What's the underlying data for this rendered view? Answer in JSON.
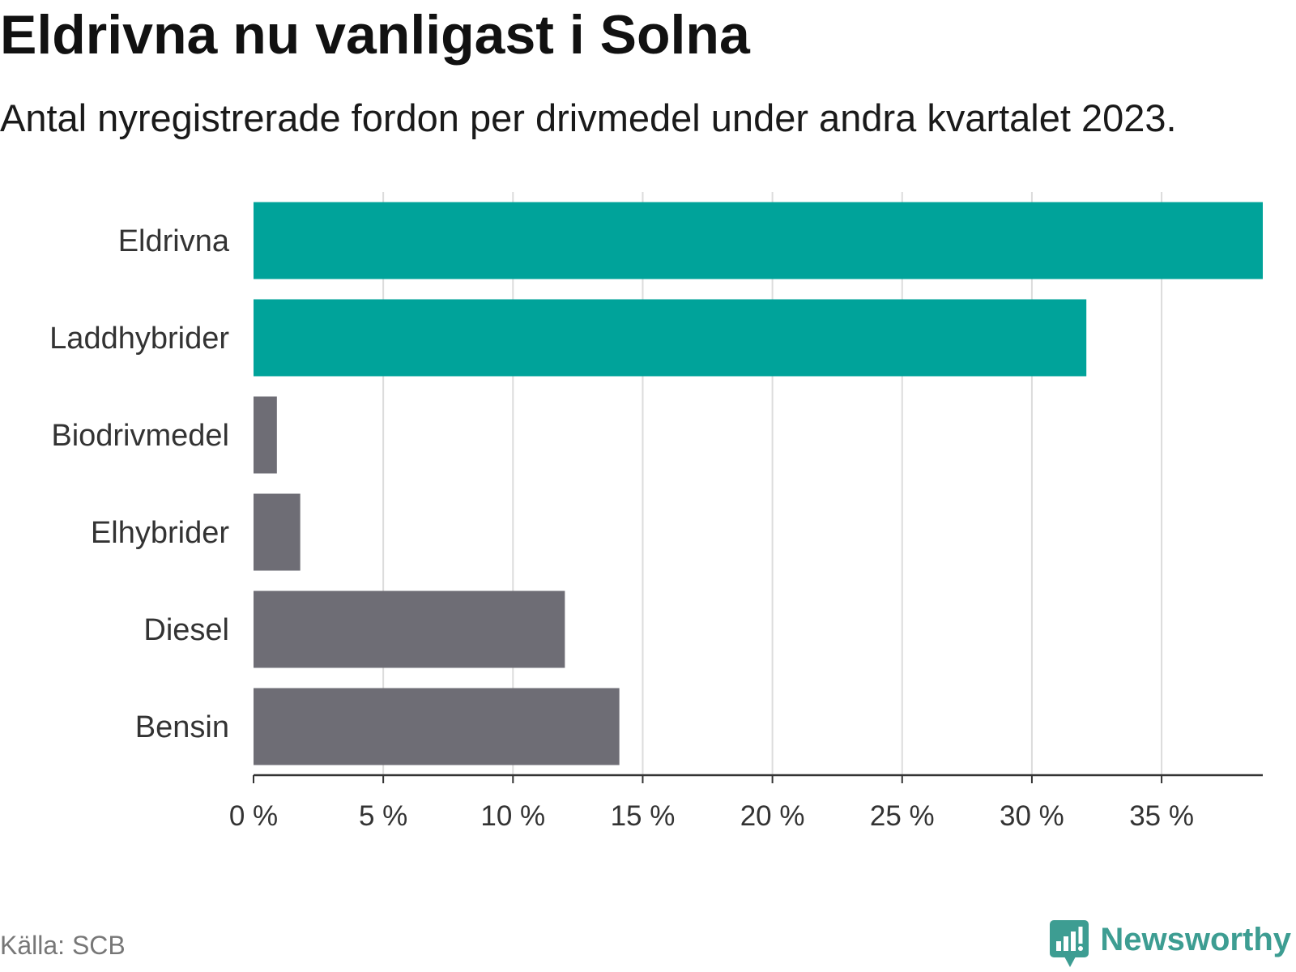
{
  "chart_data": {
    "type": "bar",
    "orientation": "horizontal",
    "title": "Eldrivna nu vanligast i Solna",
    "subtitle": "Antal nyregistrerade fordon per drivmedel under andra kvartalet 2023.",
    "categories": [
      "Eldrivna",
      "Laddhybrider",
      "Biodrivmedel",
      "Elhybrider",
      "Diesel",
      "Bensin"
    ],
    "values": [
      38.9,
      32.1,
      0.9,
      1.8,
      12.0,
      14.1
    ],
    "highlight": [
      true,
      true,
      false,
      false,
      false,
      false
    ],
    "xticks": [
      0,
      5,
      10,
      15,
      20,
      25,
      30,
      35
    ],
    "xtick_labels": [
      "0 %",
      "5 %",
      "10 %",
      "15 %",
      "20 %",
      "25 %",
      "30 %",
      "35 %"
    ],
    "xlim": [
      0,
      38.9
    ],
    "xlabel": "",
    "ylabel": "",
    "grid": true,
    "unit": "%"
  },
  "footer": {
    "source": "Källa: SCB",
    "brand": "Newsworthy"
  },
  "colors": {
    "highlight": "#00a39a",
    "default": "#6e6d75",
    "grid": "#dcdcdc",
    "axis": "#333333",
    "brand": "#3d9d92"
  }
}
